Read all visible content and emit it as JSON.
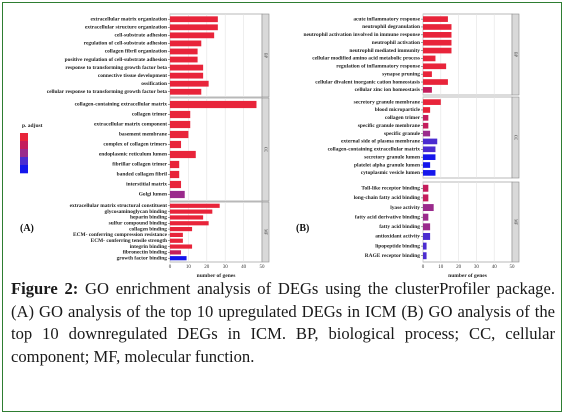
{
  "caption": {
    "label": "Figure 2:",
    "text": " GO enrichment analysis of DEGs using the clusterProfiler package. (A) GO analysis of the top 10 upregulated DEGs in ICM (B) GO analysis of the top 10 downregulated DEGs in ICM. BP, biological process; CC, cellular component; MF, molecular function."
  },
  "legend": {
    "title": "p. adjust",
    "colors": [
      "#e8243a",
      "#c41d5c",
      "#9a2a8c",
      "#4b2cd0",
      "#1416ec"
    ]
  },
  "colors": {
    "high_sig": "#e8243a",
    "low_sig": "#1416ec",
    "facet_strip": "#d9d9d9"
  },
  "chart_data": [
    {
      "type": "bar",
      "panel_label": "(A)",
      "xlabel": "number of genes",
      "xlim": [
        0,
        50
      ],
      "x_ticks": [
        "0",
        "10",
        "20",
        "30",
        "40",
        "50"
      ],
      "facets": [
        {
          "strip": "BP",
          "categories": [
            "extracellular matrix organization",
            "extracellular structure organization",
            "cell-substrate adhesion",
            "regulation of cell-substrate adhesion",
            "collagen fibril organization",
            "positive regulation of cell-substrate adhesion",
            "response to transforming growth factor beta",
            "connective tissue development",
            "ossification",
            "cellular response to transforming growth factor beta"
          ],
          "values": [
            26,
            26,
            24,
            17,
            15,
            15,
            18,
            18,
            21,
            17
          ],
          "colors": [
            "#e8243a",
            "#e8243a",
            "#e8243a",
            "#e8243a",
            "#e8243a",
            "#e8243a",
            "#e8243a",
            "#e8243a",
            "#e8243a",
            "#e8243a"
          ]
        },
        {
          "strip": "CC",
          "categories": [
            "collagen-containing extracellular matrix",
            "collagen trimer",
            "extracellular matrix component",
            "basement membrane",
            "complex of collagen trimers",
            "endoplasmic reticulum lumen",
            "fibrillar collagen trimer",
            "banded collagen fibril",
            "interstitial matrix",
            "Golgi lumen"
          ],
          "values": [
            47,
            11,
            11,
            10,
            6,
            14,
            5,
            5,
            6,
            8
          ],
          "colors": [
            "#e8243a",
            "#e8243a",
            "#e8243a",
            "#e8243a",
            "#e8243a",
            "#e8243a",
            "#e8243a",
            "#e8243a",
            "#e8243a",
            "#9a2a8c"
          ]
        },
        {
          "strip": "MF",
          "categories": [
            "extracellular matrix structural constituent",
            "glycosaminoglycan binding",
            "heparin binding",
            "sulfur compound binding",
            "collagen binding",
            "ECM- conferring compression resistance",
            "ECM- conferring tensile strength",
            "integrin binding",
            "fibronectin binding",
            "growth factor binding"
          ],
          "values": [
            27,
            23,
            18,
            21,
            12,
            7,
            7,
            12,
            6,
            9
          ],
          "colors": [
            "#e8243a",
            "#e8243a",
            "#e8243a",
            "#e8243a",
            "#e8243a",
            "#e8243a",
            "#e8243a",
            "#e8243a",
            "#c41d5c",
            "#1416ec"
          ]
        }
      ]
    },
    {
      "type": "bar",
      "panel_label": "(B)",
      "xlabel": "number of genes",
      "xlim": [
        0,
        50
      ],
      "x_ticks": [
        "0",
        "10",
        "20",
        "30",
        "40",
        "50"
      ],
      "facets": [
        {
          "strip": "BP",
          "categories": [
            "acute inflammatory response",
            "neutrophil degranulation",
            "neutrophil activation involved in immune response",
            "neutrophil activation",
            "neutrophil mediated immunity",
            "cellular modified amino acid metabolic process",
            "regulation of inflammatory response",
            "synapse pruning",
            "cellular divalent inorganic cation homeostasis",
            "cellular zinc ion homeostasis"
          ],
          "values": [
            14,
            16,
            16,
            16,
            16,
            7,
            13,
            5,
            14,
            5
          ],
          "colors": [
            "#e8243a",
            "#e8243a",
            "#e8243a",
            "#e8243a",
            "#e8243a",
            "#e8243a",
            "#e8243a",
            "#e8243a",
            "#e8243a",
            "#c41d5c"
          ]
        },
        {
          "strip": "CC",
          "categories": [
            "secretory granule membrane",
            "blood microparticle",
            "collagen trimer",
            "specific granule membrane",
            "specific granule",
            "external side of plasma membrane",
            "collagen-containing extracellular matrix",
            "secretory granule lumen",
            "platelet alpha granule lumen",
            "cytoplasmic vesicle lumen"
          ],
          "values": [
            10,
            4,
            3,
            3,
            4,
            8,
            7,
            7,
            4,
            7
          ],
          "colors": [
            "#e8243a",
            "#e8243a",
            "#c41d5c",
            "#c41d5c",
            "#9a2a8c",
            "#4b2cd0",
            "#4b2cd0",
            "#1416ec",
            "#1416ec",
            "#1416ec"
          ]
        },
        {
          "strip": "MF",
          "categories": [
            "Toll-like receptor binding",
            "long-chain fatty acid binding",
            "lyase activity",
            "fatty acid derivative binding",
            "fatty acid binding",
            "antioxidant activity",
            "lipopeptide binding",
            "RAGE receptor binding"
          ],
          "values": [
            3,
            3,
            6,
            3,
            4,
            4,
            2,
            2
          ],
          "colors": [
            "#c41d5c",
            "#c41d5c",
            "#9a2a8c",
            "#9a2a8c",
            "#9a2a8c",
            "#4b2cd0",
            "#4b2cd0",
            "#4b2cd0"
          ]
        }
      ]
    }
  ]
}
